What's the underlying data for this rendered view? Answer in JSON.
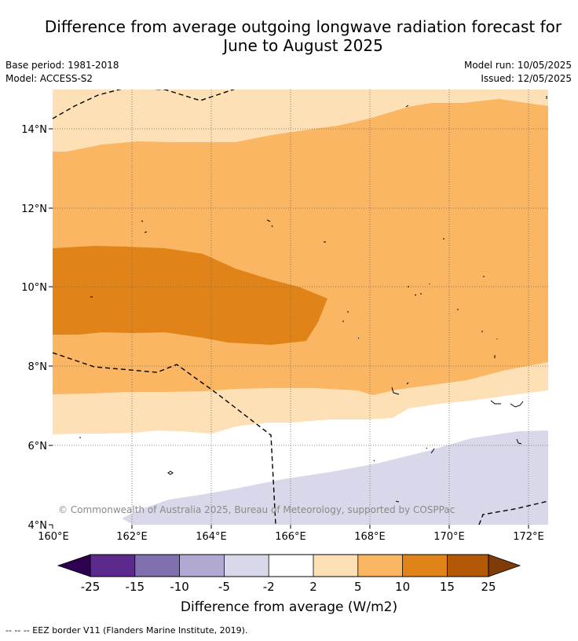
{
  "title": {
    "line1": "Difference from average outgoing longwave radiation forecast for",
    "line2": "June to August 2025"
  },
  "meta": {
    "base_period": "Base period: 1981-2018",
    "model": "Model: ACCESS-S2",
    "model_run": "Model run: 10/05/2025",
    "issued": "Issued: 12/05/2025"
  },
  "map": {
    "lat_ticks": [
      "14°N",
      "12°N",
      "10°N",
      "8°N",
      "6°N",
      "4°N"
    ],
    "lon_ticks": [
      "160°E",
      "162°E",
      "164°E",
      "166°E",
      "168°E",
      "170°E",
      "172°E"
    ],
    "copyright": "© Commonwealth of Australia 2025, Bureau of Meteorology, supported by COSPPac",
    "colors": {
      "anom_2_5": "#fde0b6",
      "anom_5_10": "#fab662",
      "anom_10_15": "#e08419",
      "anom_neg_2_neg_5": "#d8d8ea"
    }
  },
  "colorbar": {
    "ticks": [
      "-25",
      "-15",
      "-10",
      "-5",
      "-2",
      "2",
      "5",
      "10",
      "15",
      "25"
    ],
    "colors": [
      "#2d0050",
      "#5b2a8c",
      "#8070b0",
      "#b2a9d3",
      "#d8d8ea",
      "#ffffff",
      "#fde0b6",
      "#fab662",
      "#e08419",
      "#b35806",
      "#7f3b08"
    ],
    "label": "Difference from average (W/m2)"
  },
  "footer": "-- -- -- EEZ border V11 (Flanders Marine Institute, 2019)."
}
